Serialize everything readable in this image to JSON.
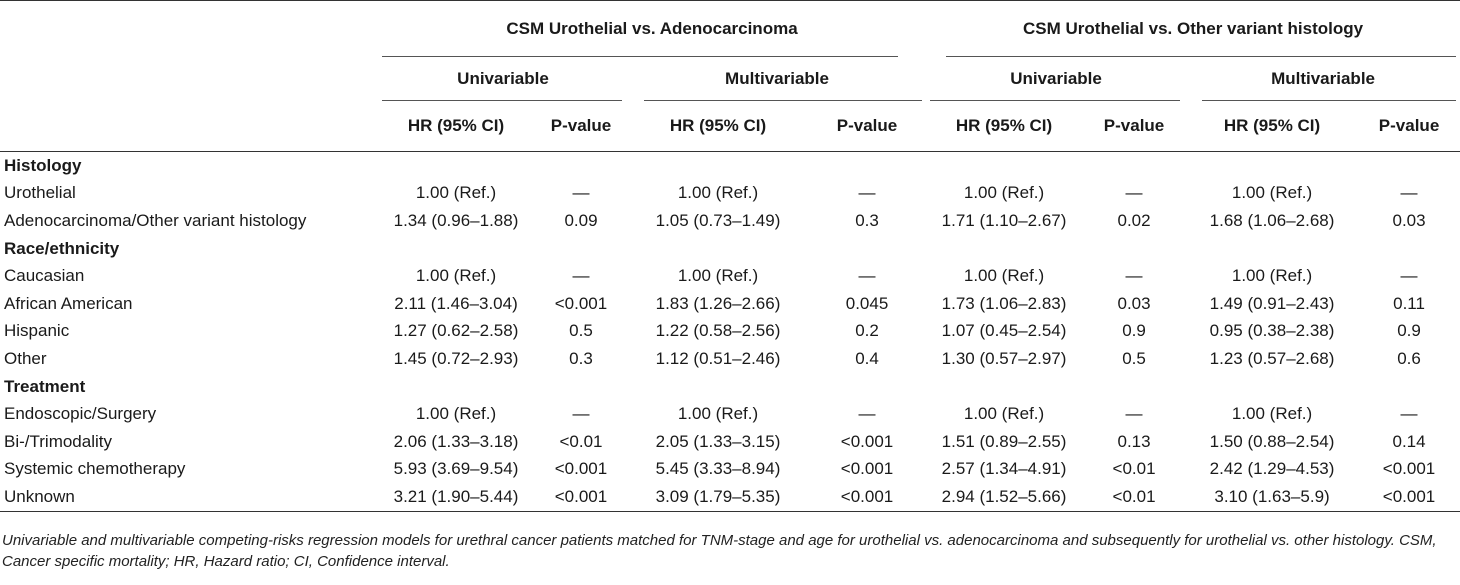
{
  "header": {
    "group1": "CSM Urothelial vs. Adenocarcinoma",
    "group2": "CSM Urothelial vs. Other variant histology",
    "univariable": "Univariable",
    "multivariable": "Multivariable",
    "hr": "HR (95% CI)",
    "pvalue": "P-value"
  },
  "sections": [
    {
      "title": "Histology",
      "rows": [
        {
          "label": "Urothelial",
          "v": [
            "1.00 (Ref.)",
            "—",
            "1.00 (Ref.)",
            "—",
            "1.00 (Ref.)",
            "—",
            "1.00 (Ref.)",
            "—"
          ]
        },
        {
          "label": "Adenocarcinoma/Other variant histology",
          "v": [
            "1.34 (0.96–1.88)",
            "0.09",
            "1.05 (0.73–1.49)",
            "0.3",
            "1.71 (1.10–2.67)",
            "0.02",
            "1.68 (1.06–2.68)",
            "0.03"
          ]
        }
      ]
    },
    {
      "title": "Race/ethnicity",
      "rows": [
        {
          "label": "Caucasian",
          "v": [
            "1.00 (Ref.)",
            "—",
            "1.00 (Ref.)",
            "—",
            "1.00 (Ref.)",
            "—",
            "1.00 (Ref.)",
            "—"
          ]
        },
        {
          "label": "African American",
          "v": [
            "2.11 (1.46–3.04)",
            "<0.001",
            "1.83 (1.26–2.66)",
            "0.045",
            "1.73 (1.06–2.83)",
            "0.03",
            "1.49 (0.91–2.43)",
            "0.11"
          ]
        },
        {
          "label": "Hispanic",
          "v": [
            "1.27 (0.62–2.58)",
            "0.5",
            "1.22 (0.58–2.56)",
            "0.2",
            "1.07 (0.45–2.54)",
            "0.9",
            "0.95 (0.38–2.38)",
            "0.9"
          ]
        },
        {
          "label": "Other",
          "v": [
            "1.45 (0.72–2.93)",
            "0.3",
            "1.12 (0.51–2.46)",
            "0.4",
            "1.30 (0.57–2.97)",
            "0.5",
            "1.23 (0.57–2.68)",
            "0.6"
          ]
        }
      ]
    },
    {
      "title": "Treatment",
      "rows": [
        {
          "label": "Endoscopic/Surgery",
          "v": [
            "1.00 (Ref.)",
            "—",
            "1.00 (Ref.)",
            "—",
            "1.00 (Ref.)",
            "—",
            "1.00 (Ref.)",
            "—"
          ]
        },
        {
          "label": "Bi-/Trimodality",
          "v": [
            "2.06 (1.33–3.18)",
            "<0.01",
            "2.05 (1.33–3.15)",
            "<0.001",
            "1.51 (0.89–2.55)",
            "0.13",
            "1.50 (0.88–2.54)",
            "0.14"
          ]
        },
        {
          "label": "Systemic chemotherapy",
          "v": [
            "5.93 (3.69–9.54)",
            "<0.001",
            "5.45 (3.33–8.94)",
            "<0.001",
            "2.57 (1.34–4.91)",
            "<0.01",
            "2.42 (1.29–4.53)",
            "<0.001"
          ]
        },
        {
          "label": "Unknown",
          "v": [
            "3.21 (1.90–5.44)",
            "<0.001",
            "3.09 (1.79–5.35)",
            "<0.001",
            "2.94 (1.52–5.66)",
            "<0.01",
            "3.10 (1.63–5.9)",
            "<0.001"
          ]
        }
      ]
    }
  ],
  "caption": "Univariable and multivariable competing-risks regression models for urethral cancer patients matched for TNM-stage and age for urothelial vs. adenocarcinoma and subsequently for urothelial vs. other histology. CSM, Cancer specific mortality; HR, Hazard ratio; CI, Confidence interval."
}
